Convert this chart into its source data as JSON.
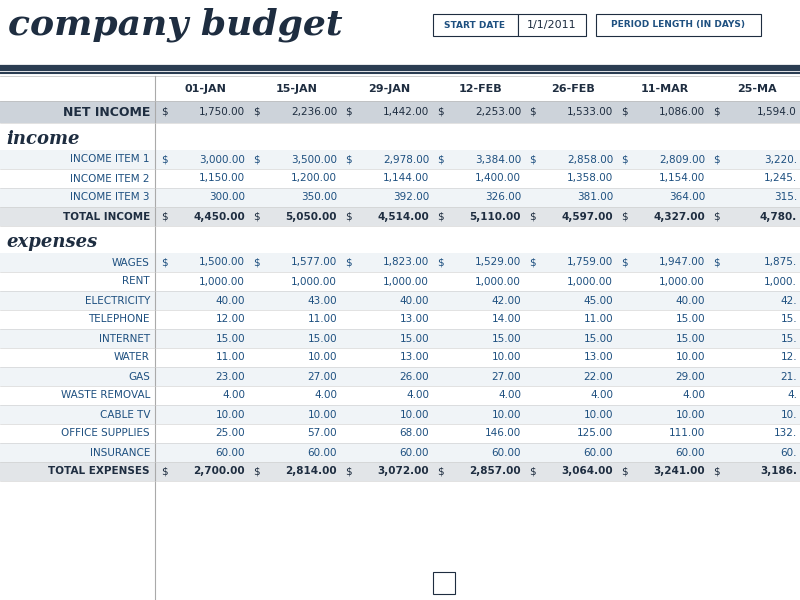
{
  "title": "company budget",
  "start_date_label": "START DATE",
  "start_date_value": "1/1/2011",
  "period_label": "PERIOD LENGTH (IN DAYS)",
  "date_cols": [
    "01-JAN",
    "15-JAN",
    "29-JAN",
    "12-FEB",
    "26-FEB",
    "11-MAR",
    "25-MA"
  ],
  "net_income_vals": [
    "1,750.00",
    "2,236.00",
    "1,442.00",
    "2,253.00",
    "1,533.00",
    "1,086.00",
    "1,594.0"
  ],
  "net_income_has_dollar": [
    true,
    true,
    true,
    true,
    true,
    true,
    true
  ],
  "income_rows": [
    {
      "label": "INCOME ITEM 1",
      "vals": [
        "3,000.00",
        "3,500.00",
        "2,978.00",
        "3,384.00",
        "2,858.00",
        "2,809.00",
        "3,220."
      ],
      "dollar": true
    },
    {
      "label": "INCOME ITEM 2",
      "vals": [
        "1,150.00",
        "1,200.00",
        "1,144.00",
        "1,400.00",
        "1,358.00",
        "1,154.00",
        "1,245."
      ],
      "dollar": false
    },
    {
      "label": "INCOME ITEM 3",
      "vals": [
        "300.00",
        "350.00",
        "392.00",
        "326.00",
        "381.00",
        "364.00",
        "315."
      ],
      "dollar": false
    }
  ],
  "total_income_vals": [
    "4,450.00",
    "5,050.00",
    "4,514.00",
    "5,110.00",
    "4,597.00",
    "4,327.00",
    "4,780."
  ],
  "expense_rows": [
    {
      "label": "WAGES",
      "vals": [
        "1,500.00",
        "1,577.00",
        "1,823.00",
        "1,529.00",
        "1,759.00",
        "1,947.00",
        "1,875."
      ],
      "dollar": true
    },
    {
      "label": "RENT",
      "vals": [
        "1,000.00",
        "1,000.00",
        "1,000.00",
        "1,000.00",
        "1,000.00",
        "1,000.00",
        "1,000."
      ],
      "dollar": false
    },
    {
      "label": "ELECTRICITY",
      "vals": [
        "40.00",
        "43.00",
        "40.00",
        "42.00",
        "45.00",
        "40.00",
        "42."
      ],
      "dollar": false
    },
    {
      "label": "TELEPHONE",
      "vals": [
        "12.00",
        "11.00",
        "13.00",
        "14.00",
        "11.00",
        "15.00",
        "15."
      ],
      "dollar": false
    },
    {
      "label": "INTERNET",
      "vals": [
        "15.00",
        "15.00",
        "15.00",
        "15.00",
        "15.00",
        "15.00",
        "15."
      ],
      "dollar": false
    },
    {
      "label": "WATER",
      "vals": [
        "11.00",
        "10.00",
        "13.00",
        "10.00",
        "13.00",
        "10.00",
        "12."
      ],
      "dollar": false
    },
    {
      "label": "GAS",
      "vals": [
        "23.00",
        "27.00",
        "26.00",
        "27.00",
        "22.00",
        "29.00",
        "21."
      ],
      "dollar": false
    },
    {
      "label": "WASTE REMOVAL",
      "vals": [
        "4.00",
        "4.00",
        "4.00",
        "4.00",
        "4.00",
        "4.00",
        "4."
      ],
      "dollar": false
    },
    {
      "label": "CABLE TV",
      "vals": [
        "10.00",
        "10.00",
        "10.00",
        "10.00",
        "10.00",
        "10.00",
        "10."
      ],
      "dollar": false
    },
    {
      "label": "OFFICE SUPPLIES",
      "vals": [
        "25.00",
        "57.00",
        "68.00",
        "146.00",
        "125.00",
        "111.00",
        "132."
      ],
      "dollar": false
    },
    {
      "label": "INSURANCE",
      "vals": [
        "60.00",
        "60.00",
        "60.00",
        "60.00",
        "60.00",
        "60.00",
        "60."
      ],
      "dollar": false
    }
  ],
  "total_expenses_vals": [
    "2,700.00",
    "2,814.00",
    "3,072.00",
    "2,857.00",
    "3,064.00",
    "3,241.00",
    "3,186."
  ],
  "dark_navy": "#1e2d40",
  "light_blue_text": "#1e5080",
  "net_income_bg": "#cdd3da",
  "total_row_bg": "#e2e5e8",
  "alt_row_bg": "#f0f4f7",
  "white": "#ffffff",
  "separator_color": "#2b3d52",
  "grid_line": "#cccccc"
}
